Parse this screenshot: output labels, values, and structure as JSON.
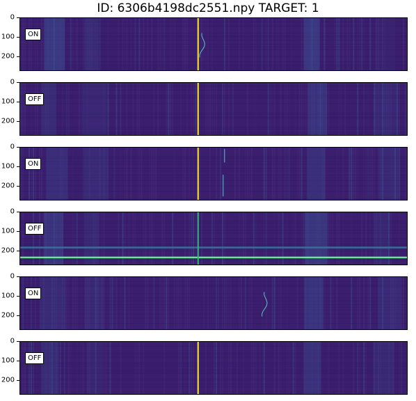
{
  "title": "ID: 6306b4198dc2551.npy TARGET: 1",
  "chart_data": {
    "type": "heatmap",
    "colormap": "viridis",
    "background_color": "#3b1e6e",
    "yticks": [
      "0",
      "100",
      "200"
    ],
    "ylim": [
      0,
      273
    ],
    "panels": [
      {
        "label": "ON",
        "vertical_line": {
          "x_frac": 0.46,
          "color": "#fde725"
        },
        "signal": "drifting"
      },
      {
        "label": "OFF",
        "vertical_line": {
          "x_frac": 0.46,
          "color": "#fde725"
        }
      },
      {
        "label": "ON",
        "vertical_line": {
          "x_frac": 0.46,
          "color": "#fde725"
        },
        "signal": "short vertical segments"
      },
      {
        "label": "OFF",
        "vertical_line": {
          "x_frac": 0.46,
          "color": "#35b779"
        },
        "horizontal_lines": [
          {
            "y": 235,
            "color": "#6ce59a"
          },
          {
            "y": 183,
            "color": "#3a6f97"
          }
        ]
      },
      {
        "label": "ON",
        "signal": "drifting"
      },
      {
        "label": "OFF",
        "vertical_line": {
          "x_frac": 0.46,
          "color": "#fde725"
        }
      }
    ]
  }
}
